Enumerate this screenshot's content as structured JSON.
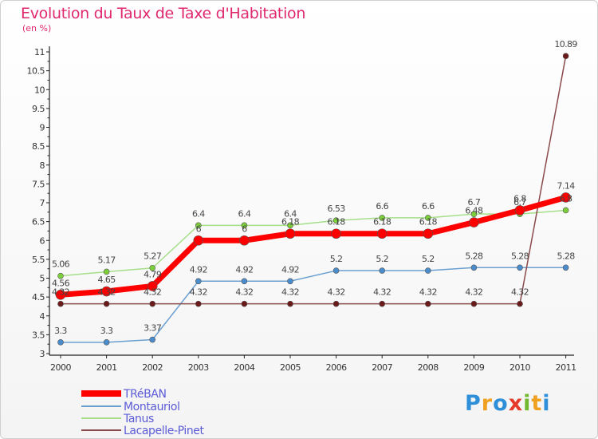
{
  "chart_data": {
    "type": "line",
    "title": "Evolution du Taux de Taxe d'Habitation",
    "subtitle": "(en %)",
    "x": [
      "2000",
      "2001",
      "2002",
      "2003",
      "2004",
      "2005",
      "2006",
      "2007",
      "2008",
      "2009",
      "2010",
      "2011"
    ],
    "ylim": [
      3,
      11
    ],
    "yticks": [
      "3",
      "3.5",
      "4",
      "4.5",
      "5",
      "5.5",
      "6",
      "6.5",
      "7",
      "7.5",
      "8",
      "8.5",
      "9",
      "9.5",
      "10",
      "10.5",
      "11"
    ],
    "grid": false,
    "legend_position": "bottom-left",
    "series": [
      {
        "name": "TRéBAN",
        "color": "#ff0000",
        "marker": "#ff0000",
        "width": 7,
        "radius": 6,
        "values": [
          4.56,
          4.65,
          4.79,
          6,
          6,
          6.18,
          6.18,
          6.18,
          6.18,
          6.48,
          6.8,
          7.14
        ],
        "labels": [
          "4.56",
          "4.65",
          "4.79",
          "6",
          "6",
          "6.18",
          "6.18",
          "6.18",
          "6.18",
          "6.48",
          "6.8",
          "7.14"
        ]
      },
      {
        "name": "Montauriol",
        "color": "#6a9fd0",
        "marker": "#4a8ccc",
        "width": 1.5,
        "radius": 3.5,
        "values": [
          3.3,
          3.3,
          3.37,
          4.92,
          4.92,
          4.92,
          5.2,
          5.2,
          5.2,
          5.28,
          5.28,
          5.28
        ],
        "labels": [
          "3.3",
          "3.3",
          "3.37",
          "4.92",
          "4.92",
          "4.92",
          "5.2",
          "5.2",
          "5.2",
          "5.28",
          "5.28",
          "5.28"
        ]
      },
      {
        "name": "Tanus",
        "color": "#a6de8a",
        "marker": "#7ccf3a",
        "width": 1.5,
        "radius": 3.5,
        "values": [
          5.06,
          5.17,
          5.27,
          6.4,
          6.4,
          6.4,
          6.53,
          6.6,
          6.6,
          6.7,
          6.7,
          6.8
        ],
        "labels": [
          "5.06",
          "5.17",
          "5.27",
          "6.4",
          "6.4",
          "6.4",
          "6.53",
          "6.6",
          "6.6",
          "6.7",
          "6.7",
          "6.8"
        ]
      },
      {
        "name": "Lacapelle-Pinet",
        "color": "#8a4a4a",
        "marker": "#6b1a1a",
        "width": 1.5,
        "radius": 3.5,
        "values": [
          4.32,
          4.32,
          4.32,
          4.32,
          4.32,
          4.32,
          4.32,
          4.32,
          4.32,
          4.32,
          4.32,
          10.89
        ],
        "labels": [
          "4.32",
          "4.32",
          "4.32",
          "4.32",
          "4.32",
          "4.32",
          "4.32",
          "4.32",
          "4.32",
          "4.32",
          "4.32",
          "10.89"
        ]
      }
    ]
  },
  "logo": {
    "letters": [
      "P",
      "r",
      "o",
      "x",
      "i",
      "t",
      "i"
    ],
    "colors": [
      "#2f8fd8",
      "#f0a020",
      "#2f8fd8",
      "#e63a2a",
      "#70b830",
      "#f0a020",
      "#2f8fd8"
    ]
  }
}
